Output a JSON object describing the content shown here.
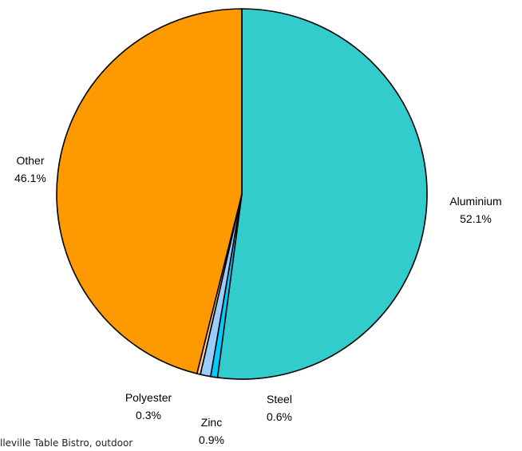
{
  "chart_data": {
    "type": "pie",
    "title": "",
    "slices": [
      {
        "label": "Aluminium",
        "value": 52.1,
        "display": "52.1%",
        "color": "#33CCCC"
      },
      {
        "label": "Steel",
        "value": 0.6,
        "display": "0.6%",
        "color": "#00CCFF"
      },
      {
        "label": "Zinc",
        "value": 0.9,
        "display": "0.9%",
        "color": "#99CCFF"
      },
      {
        "label": "Polyester",
        "value": 0.3,
        "display": "0.3%",
        "color": "#FFCC99"
      },
      {
        "label": "Other",
        "value": 46.1,
        "display": "46.1%",
        "color": "#FF9900"
      }
    ],
    "start": "top",
    "direction": "clockwise",
    "legend": "none"
  },
  "caption": "lleville Table Bistro, outdoor"
}
